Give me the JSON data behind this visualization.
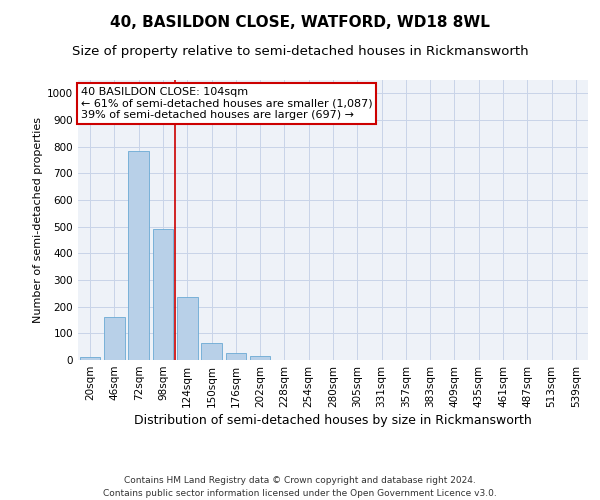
{
  "title": "40, BASILDON CLOSE, WATFORD, WD18 8WL",
  "subtitle": "Size of property relative to semi-detached houses in Rickmansworth",
  "xlabel": "Distribution of semi-detached houses by size in Rickmansworth",
  "ylabel": "Number of semi-detached properties",
  "categories": [
    "20sqm",
    "46sqm",
    "72sqm",
    "98sqm",
    "124sqm",
    "150sqm",
    "176sqm",
    "202sqm",
    "228sqm",
    "254sqm",
    "280sqm",
    "305sqm",
    "331sqm",
    "357sqm",
    "383sqm",
    "409sqm",
    "435sqm",
    "461sqm",
    "487sqm",
    "513sqm",
    "539sqm"
  ],
  "values": [
    10,
    163,
    783,
    490,
    237,
    65,
    28,
    14,
    0,
    0,
    0,
    0,
    0,
    0,
    0,
    0,
    0,
    0,
    0,
    0,
    0
  ],
  "bar_color": "#b8d0e8",
  "bar_edge_color": "#6aaad4",
  "bar_width": 0.85,
  "red_line_x": 3.5,
  "annotation_title": "40 BASILDON CLOSE: 104sqm",
  "annotation_line1": "← 61% of semi-detached houses are smaller (1,087)",
  "annotation_line2": "39% of semi-detached houses are larger (697) →",
  "annotation_box_color": "#ffffff",
  "annotation_box_edge": "#cc0000",
  "red_line_color": "#cc0000",
  "ylim": [
    0,
    1050
  ],
  "yticks": [
    0,
    100,
    200,
    300,
    400,
    500,
    600,
    700,
    800,
    900,
    1000
  ],
  "background_color": "#ffffff",
  "plot_bg_color": "#eef2f8",
  "grid_color": "#c8d4e8",
  "footer_line1": "Contains HM Land Registry data © Crown copyright and database right 2024.",
  "footer_line2": "Contains public sector information licensed under the Open Government Licence v3.0.",
  "title_fontsize": 11,
  "subtitle_fontsize": 9.5,
  "xlabel_fontsize": 9,
  "ylabel_fontsize": 8,
  "tick_fontsize": 7.5,
  "annotation_fontsize": 8,
  "footer_fontsize": 6.5
}
